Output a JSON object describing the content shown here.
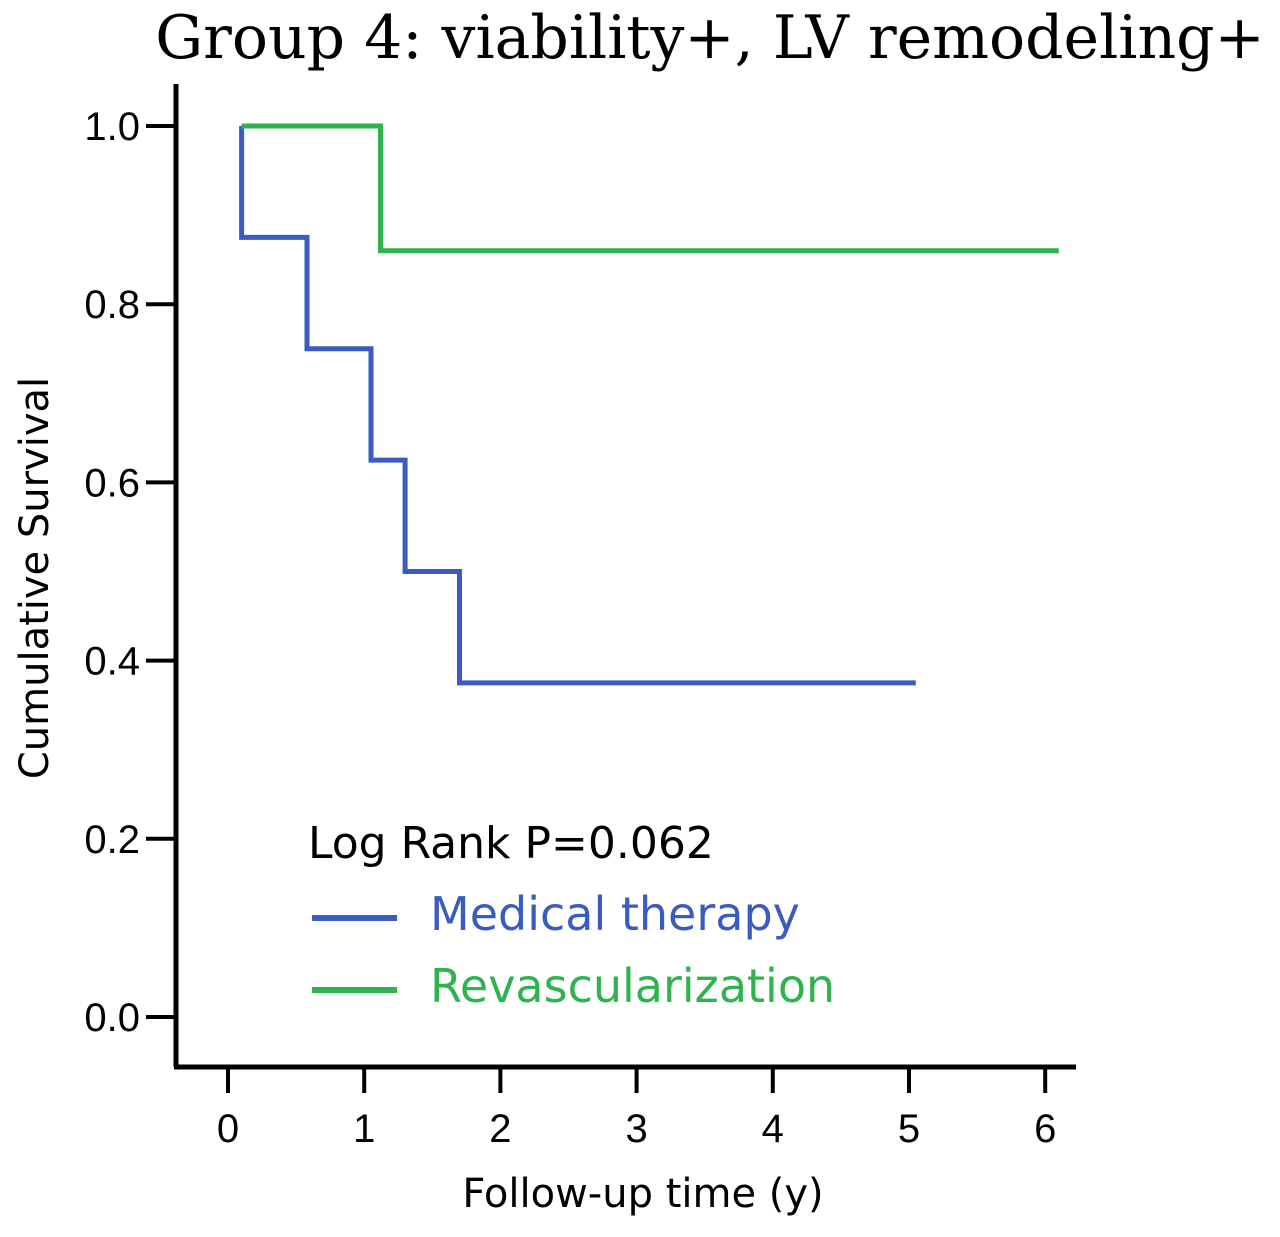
{
  "chart_data": {
    "type": "line",
    "step": true,
    "title": "Group 4: viability+, LV remodeling+",
    "xlabel": "Follow-up time (y)",
    "ylabel": "Cumulative Survival",
    "xlim": [
      -0.4,
      6.2
    ],
    "ylim": [
      -0.06,
      1.05
    ],
    "x_ticks": [
      0,
      1,
      2,
      3,
      4,
      5,
      6
    ],
    "x_tick_labels": [
      "0",
      "1",
      "2",
      "3",
      "4",
      "5",
      "6"
    ],
    "y_ticks": [
      0.0,
      0.2,
      0.4,
      0.6,
      0.8,
      1.0
    ],
    "y_tick_labels": [
      "0.0",
      "0.2",
      "0.4",
      "0.6",
      "0.8",
      "1.0"
    ],
    "annotation": "Log Rank P=0.062",
    "legend_placement": "bottom-left",
    "grid": false,
    "series": [
      {
        "name": "Medical therapy",
        "color": "#3a5bbf",
        "x": [
          0.1,
          0.1,
          0.58,
          0.58,
          1.05,
          1.05,
          1.3,
          1.3,
          1.7,
          1.7,
          5.05
        ],
        "y": [
          1.0,
          0.875,
          0.875,
          0.75,
          0.75,
          0.625,
          0.625,
          0.5,
          0.5,
          0.375,
          0.375
        ]
      },
      {
        "name": "Revascularization",
        "color": "#2eb34f",
        "x": [
          0.1,
          1.12,
          1.12,
          6.1
        ],
        "y": [
          1.0,
          1.0,
          0.86,
          0.86
        ]
      }
    ]
  }
}
